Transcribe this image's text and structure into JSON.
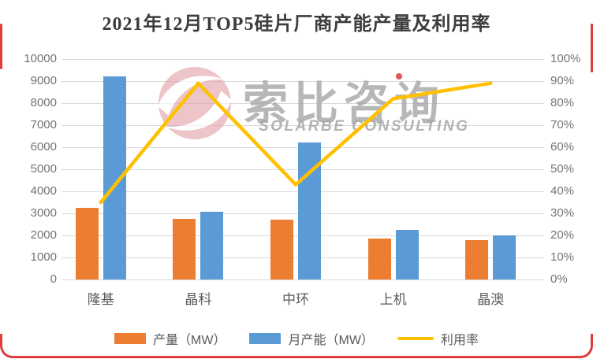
{
  "title": "2021年12月TOP5硅片厂商产能产量及利用率",
  "watermark": {
    "logo": "solarbe-swirl-logo",
    "cn": "索比咨询",
    "en": "SOLARBE CONSULTING"
  },
  "colors": {
    "production": "#ED7D31",
    "capacity": "#5B9BD5",
    "utilization": "#FFC000",
    "grid": "#D9D9D9",
    "axis_text": "#737373",
    "label_text": "#595959",
    "title_text": "#3C3C3C",
    "frame": "#E23B3B",
    "watermark_gray": "#A6A6A6",
    "logo_pink": "#E3A2A8"
  },
  "chart_data": {
    "type": "bar",
    "subtype": "grouped-bars-with-line",
    "title": "2021年12月TOP5硅片厂商产能产量及利用率",
    "categories": [
      "隆基",
      "晶科",
      "中环",
      "上机",
      "晶澳"
    ],
    "series": [
      {
        "name": "产量（MW）",
        "type": "bar",
        "axis": "left",
        "values": [
          3250,
          2750,
          2700,
          1850,
          1780
        ]
      },
      {
        "name": "月产能（MW）",
        "type": "bar",
        "axis": "left",
        "values": [
          9200,
          3080,
          6200,
          2250,
          2000
        ]
      },
      {
        "name": "利用率",
        "type": "line",
        "axis": "right",
        "unit": "%",
        "values": [
          35,
          89,
          43,
          82,
          89
        ]
      }
    ],
    "left_axis": {
      "min": 0,
      "max": 10000,
      "step": 1000,
      "grid": true,
      "ticks": [
        "10000",
        "9000",
        "8000",
        "7000",
        "6000",
        "5000",
        "4000",
        "3000",
        "2000",
        "1000",
        "0"
      ]
    },
    "right_axis": {
      "min": 0,
      "max": 100,
      "step": 10,
      "ticks": [
        "100%",
        "90%",
        "80%",
        "70%",
        "60%",
        "50%",
        "40%",
        "30%",
        "20%",
        "10%",
        "0%"
      ]
    },
    "legend": {
      "position": "bottom",
      "items": [
        "产量（MW）",
        "月产能（MW）",
        "利用率"
      ]
    }
  }
}
